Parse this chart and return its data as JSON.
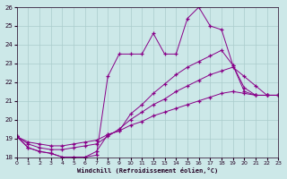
{
  "xlabel": "Windchill (Refroidissement éolien,°C)",
  "bg_color": "#cce8e8",
  "grid_color": "#aacccc",
  "line_color": "#880088",
  "xlim": [
    0,
    23
  ],
  "ylim": [
    18,
    26
  ],
  "xticks": [
    0,
    1,
    2,
    3,
    4,
    5,
    6,
    7,
    8,
    9,
    10,
    11,
    12,
    13,
    14,
    15,
    16,
    17,
    18,
    19,
    20,
    21,
    22,
    23
  ],
  "yticks": [
    18,
    19,
    20,
    21,
    22,
    23,
    24,
    25,
    26
  ],
  "series": [
    {
      "x": [
        0,
        1,
        2,
        3,
        4,
        5,
        6,
        7,
        8,
        9,
        10,
        11,
        12,
        13,
        14,
        15,
        16,
        17,
        18,
        19,
        20,
        21,
        22,
        23
      ],
      "y": [
        19.1,
        18.5,
        18.3,
        18.2,
        18.0,
        18.0,
        18.0,
        18.1,
        22.3,
        23.5,
        23.5,
        23.5,
        24.6,
        23.5,
        23.5,
        25.4,
        26.0,
        25.0,
        24.8,
        22.9,
        21.5,
        21.3,
        21.3,
        21.3
      ]
    },
    {
      "x": [
        0,
        1,
        2,
        3,
        4,
        5,
        6,
        7,
        8,
        9,
        10,
        11,
        12,
        13,
        14,
        15,
        16,
        17,
        18,
        19,
        20,
        21,
        22,
        23
      ],
      "y": [
        19.1,
        18.5,
        18.3,
        18.2,
        18.0,
        18.0,
        18.0,
        18.3,
        19.2,
        19.4,
        20.3,
        20.8,
        21.4,
        21.9,
        22.4,
        22.8,
        23.1,
        23.4,
        23.7,
        22.9,
        21.7,
        21.3,
        21.3,
        21.3
      ]
    },
    {
      "x": [
        0,
        1,
        2,
        3,
        4,
        5,
        6,
        7,
        8,
        9,
        10,
        11,
        12,
        13,
        14,
        15,
        16,
        17,
        18,
        19,
        20,
        21,
        22,
        23
      ],
      "y": [
        19.1,
        18.7,
        18.5,
        18.4,
        18.4,
        18.5,
        18.6,
        18.7,
        19.1,
        19.5,
        20.0,
        20.4,
        20.8,
        21.1,
        21.5,
        21.8,
        22.1,
        22.4,
        22.6,
        22.8,
        22.3,
        21.8,
        21.3,
        21.3
      ]
    },
    {
      "x": [
        0,
        1,
        2,
        3,
        4,
        5,
        6,
        7,
        8,
        9,
        10,
        11,
        12,
        13,
        14,
        15,
        16,
        17,
        18,
        19,
        20,
        21,
        22,
        23
      ],
      "y": [
        19.1,
        18.8,
        18.7,
        18.6,
        18.6,
        18.7,
        18.8,
        18.9,
        19.2,
        19.4,
        19.7,
        19.9,
        20.2,
        20.4,
        20.6,
        20.8,
        21.0,
        21.2,
        21.4,
        21.5,
        21.4,
        21.3,
        21.3,
        21.3
      ]
    }
  ]
}
